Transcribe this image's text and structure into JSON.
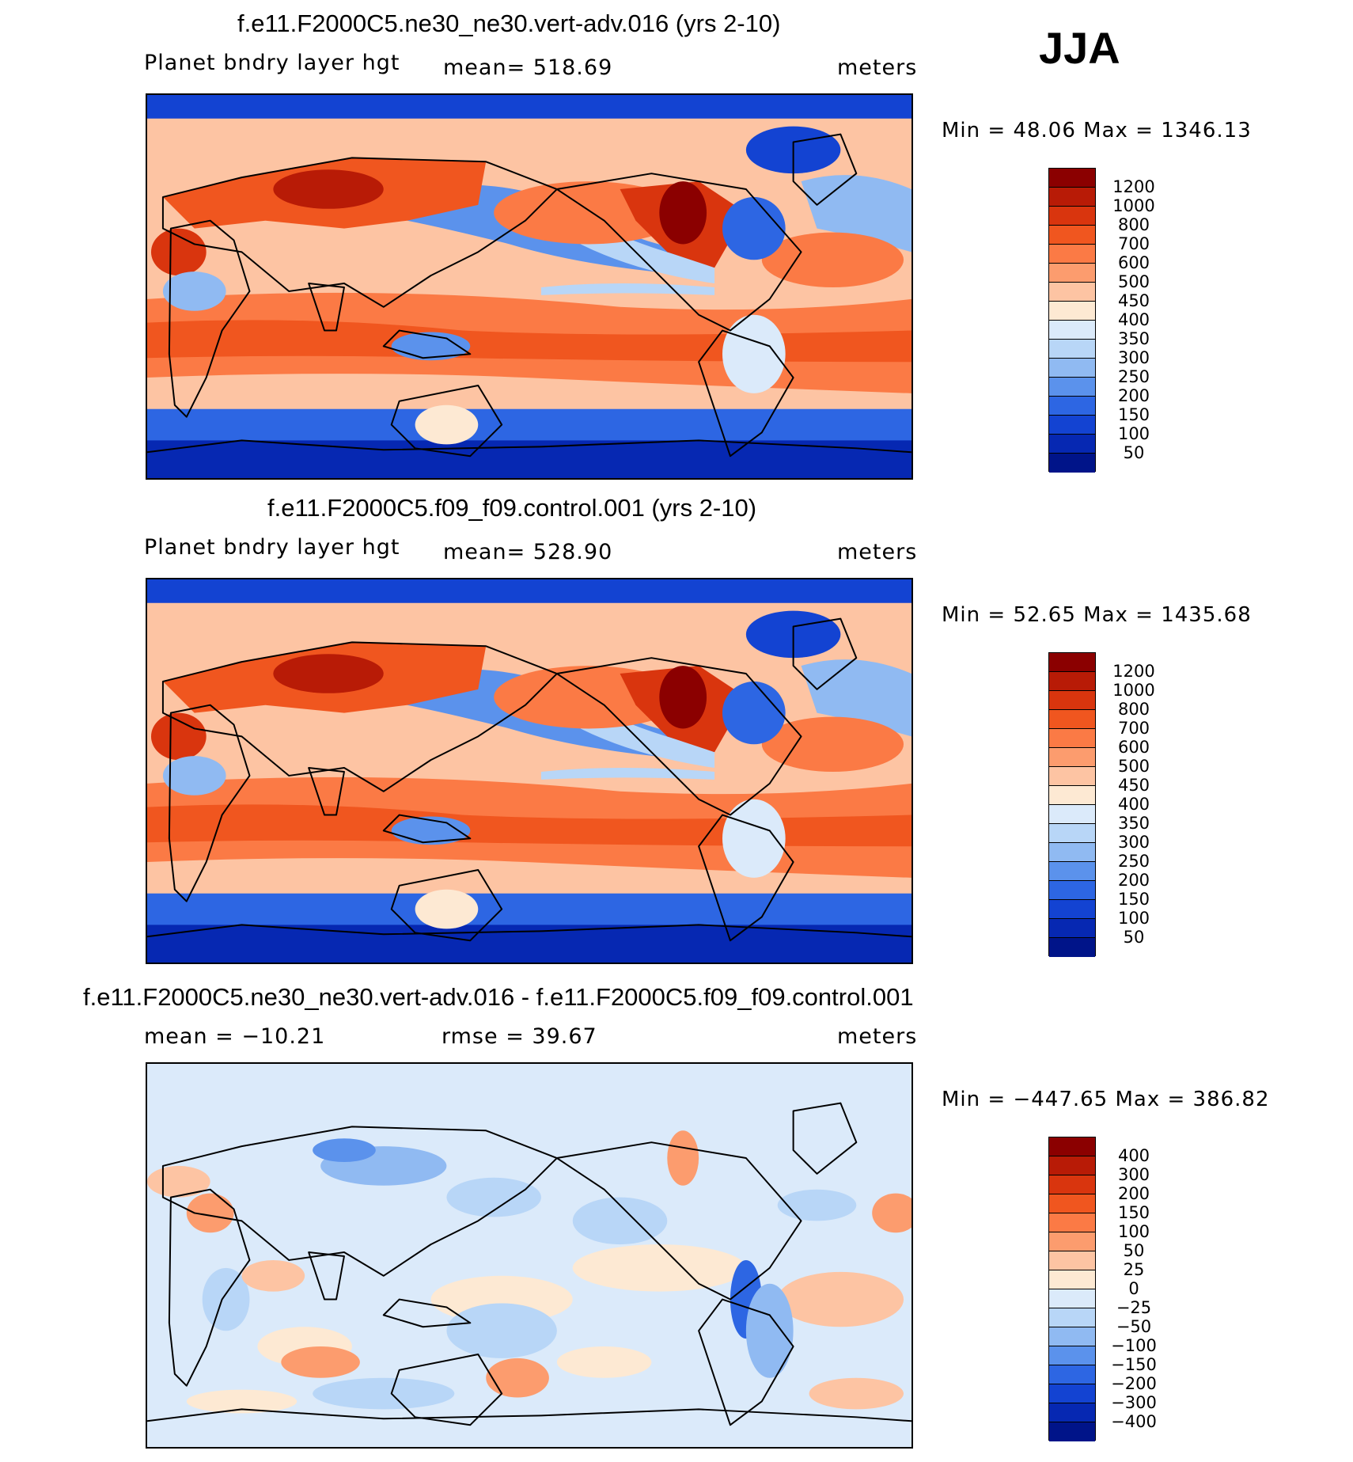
{
  "season": "JJA",
  "panels": [
    {
      "title": "f.e11.F2000C5.ne30_ne30.vert-adv.016 (yrs 2-10)",
      "left_label": "Planet bndry layer hgt",
      "center_label": "mean=  518.69",
      "units": "meters",
      "minmax": "Min =   48.06 Max =  1346.13",
      "colorbar": {
        "labels": [
          "1200",
          "1000",
          "800",
          "700",
          "600",
          "500",
          "450",
          "400",
          "350",
          "300",
          "250",
          "200",
          "150",
          "100",
          "50"
        ],
        "colors": [
          "#8b0000",
          "#b81b06",
          "#d9350e",
          "#f0561f",
          "#fb7a45",
          "#fc9c6e",
          "#fdc4a3",
          "#fde9d3",
          "#dbeafa",
          "#b8d6f7",
          "#90baf2",
          "#5b92ec",
          "#2d66e3",
          "#1343d2",
          "#0628b2",
          "#001489"
        ]
      }
    },
    {
      "title": "f.e11.F2000C5.f09_f09.control.001 (yrs 2-10)",
      "left_label": "Planet bndry layer hgt",
      "center_label": "mean=  528.90",
      "units": "meters",
      "minmax": "Min =   52.65 Max =  1435.68",
      "colorbar": {
        "labels": [
          "1200",
          "1000",
          "800",
          "700",
          "600",
          "500",
          "450",
          "400",
          "350",
          "300",
          "250",
          "200",
          "150",
          "100",
          "50"
        ],
        "colors": [
          "#8b0000",
          "#b81b06",
          "#d9350e",
          "#f0561f",
          "#fb7a45",
          "#fc9c6e",
          "#fdc4a3",
          "#fde9d3",
          "#dbeafa",
          "#b8d6f7",
          "#90baf2",
          "#5b92ec",
          "#2d66e3",
          "#1343d2",
          "#0628b2",
          "#001489"
        ]
      }
    },
    {
      "title": "f.e11.F2000C5.ne30_ne30.vert-adv.016 - f.e11.F2000C5.f09_f09.control.001",
      "left_label": "mean  =  −10.21",
      "center_label": "rmse  =    39.67",
      "units": "meters",
      "minmax": "Min =  −447.65 Max =  386.82",
      "colorbar": {
        "labels": [
          "400",
          "300",
          "200",
          "150",
          "100",
          "50",
          "25",
          "0",
          "−25",
          "−50",
          "−100",
          "−150",
          "−200",
          "−300",
          "−400"
        ],
        "colors": [
          "#8b0000",
          "#b81b06",
          "#d9350e",
          "#f0561f",
          "#fb7a45",
          "#fc9c6e",
          "#fdc4a3",
          "#fde9d3",
          "#dbeafa",
          "#b8d6f7",
          "#90baf2",
          "#5b92ec",
          "#2d66e3",
          "#1343d2",
          "#0628b2",
          "#001489"
        ]
      }
    }
  ],
  "chart_data": [
    {
      "type": "heatmap",
      "title": "f.e11.F2000C5.ne30_ne30.vert-adv.016 (yrs 2-10)",
      "variable": "Planet bndry layer hgt",
      "units": "meters",
      "season": "JJA",
      "mean": 518.69,
      "min": 48.06,
      "max": 1346.13,
      "contour_levels": [
        50,
        100,
        150,
        200,
        250,
        300,
        350,
        400,
        450,
        500,
        600,
        700,
        800,
        1000,
        1200
      ]
    },
    {
      "type": "heatmap",
      "title": "f.e11.F2000C5.f09_f09.control.001 (yrs 2-10)",
      "variable": "Planet bndry layer hgt",
      "units": "meters",
      "season": "JJA",
      "mean": 528.9,
      "min": 52.65,
      "max": 1435.68,
      "contour_levels": [
        50,
        100,
        150,
        200,
        250,
        300,
        350,
        400,
        450,
        500,
        600,
        700,
        800,
        1000,
        1200
      ]
    },
    {
      "type": "heatmap",
      "title": "f.e11.F2000C5.ne30_ne30.vert-adv.016 - f.e11.F2000C5.f09_f09.control.001",
      "units": "meters",
      "season": "JJA",
      "mean": -10.21,
      "rmse": 39.67,
      "min": -447.65,
      "max": 386.82,
      "contour_levels": [
        -400,
        -300,
        -200,
        -150,
        -100,
        -50,
        -25,
        0,
        25,
        50,
        100,
        150,
        200,
        300,
        400
      ]
    }
  ]
}
